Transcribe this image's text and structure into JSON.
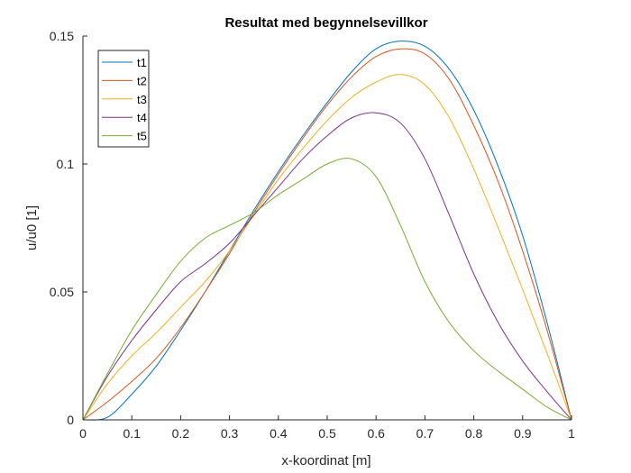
{
  "chart_data": {
    "type": "line",
    "title": "Resultat med begynnelsevillkor",
    "xlabel": "x-koordinat [m]",
    "ylabel": "u/u0 [1]",
    "xlim": [
      0,
      1
    ],
    "ylim": [
      0,
      0.15
    ],
    "xticks": [
      "0",
      "0.1",
      "0.2",
      "0.3",
      "0.4",
      "0.5",
      "0.6",
      "0.7",
      "0.8",
      "0.9",
      "1"
    ],
    "yticks": [
      "0",
      "0.05",
      "0.1",
      "0.15"
    ],
    "grid": false,
    "legend_position": "top-left",
    "x": [
      0,
      0.05,
      0.1,
      0.15,
      0.2,
      0.25,
      0.3,
      0.35,
      0.4,
      0.45,
      0.5,
      0.55,
      0.6,
      0.65,
      0.7,
      0.75,
      0.8,
      0.85,
      0.9,
      0.95,
      1
    ],
    "series": [
      {
        "name": "t1",
        "color": "#0072BD",
        "values": [
          0,
          0.001,
          0.01,
          0.021,
          0.035,
          0.05,
          0.066,
          0.082,
          0.097,
          0.111,
          0.124,
          0.136,
          0.145,
          0.148,
          0.146,
          0.137,
          0.121,
          0.099,
          0.072,
          0.038,
          0
        ]
      },
      {
        "name": "t2",
        "color": "#D95319",
        "values": [
          0,
          0.007,
          0.015,
          0.024,
          0.036,
          0.05,
          0.065,
          0.081,
          0.096,
          0.11,
          0.123,
          0.134,
          0.142,
          0.145,
          0.143,
          0.133,
          0.115,
          0.093,
          0.066,
          0.035,
          0
        ]
      },
      {
        "name": "t3",
        "color": "#EDB120",
        "values": [
          0,
          0.014,
          0.025,
          0.034,
          0.044,
          0.054,
          0.066,
          0.08,
          0.094,
          0.106,
          0.117,
          0.126,
          0.132,
          0.135,
          0.131,
          0.118,
          0.098,
          0.075,
          0.051,
          0.026,
          0
        ]
      },
      {
        "name": "t4",
        "color": "#7E2F8E",
        "values": [
          0,
          0.017,
          0.031,
          0.043,
          0.054,
          0.061,
          0.069,
          0.08,
          0.091,
          0.102,
          0.111,
          0.118,
          0.12,
          0.116,
          0.102,
          0.08,
          0.057,
          0.038,
          0.023,
          0.011,
          0
        ]
      },
      {
        "name": "t5",
        "color": "#77AC30",
        "values": [
          0,
          0.018,
          0.035,
          0.049,
          0.062,
          0.071,
          0.076,
          0.081,
          0.088,
          0.094,
          0.1,
          0.102,
          0.095,
          0.076,
          0.054,
          0.038,
          0.027,
          0.019,
          0.012,
          0.005,
          0
        ]
      }
    ]
  }
}
